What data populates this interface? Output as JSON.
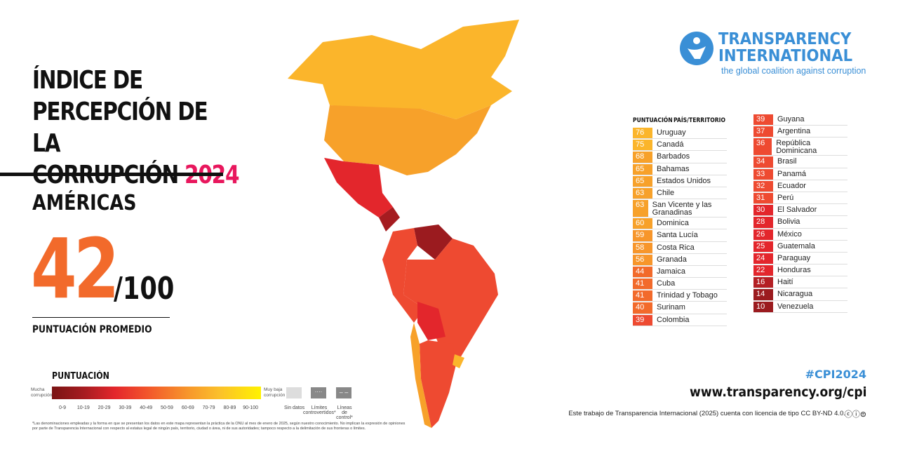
{
  "title": {
    "line1": "ÍNDICE DE",
    "line2": "PERCEPCIÓN DE LA",
    "line3": "CORRUPCIÓN",
    "year": "2024"
  },
  "region": "AMÉRICAS",
  "score": {
    "value": "42",
    "out_of": "/100",
    "label": "PUNTUACIÓN PROMEDIO"
  },
  "legend": {
    "title": "PUNTUACIÓN",
    "left_label": "Mucha corrupción",
    "right_label": "Muy baja corrupción",
    "ranges": [
      "0-9",
      "10-19",
      "20-29",
      "30-39",
      "40-49",
      "50-59",
      "60-69",
      "70-79",
      "80-89",
      "90-100"
    ],
    "no_data": "Sin datos",
    "disputed": "Límites controvertidos*",
    "control": "Líneas de control*"
  },
  "footnote": "*Las denominaciones empleadas y la forma en que se presentan los datos en este mapa representan la práctica de la ONU al mes de enero de 2025, según nuestro conocimiento. No implican la expresión de opiniones por parte de Transparencia Internacional con respecto al estatus legal de ningún país, territorio, ciudad o área, ni de sus autoridades; tampoco respecto a la delimitación de sus fronteras o límites.",
  "logo": {
    "line1": "TRANSPARENCY",
    "line2": "INTERNATIONAL",
    "tagline": "the global coalition against corruption"
  },
  "table": {
    "col_score": "PUNTUACIÓN",
    "col_country": "PAÍS/TERRITORIO",
    "left": [
      [
        "76",
        "Uruguay"
      ],
      [
        "75",
        "Canadá"
      ],
      [
        "68",
        "Barbados"
      ],
      [
        "65",
        "Bahamas"
      ],
      [
        "65",
        "Estados Unidos"
      ],
      [
        "63",
        "Chile"
      ],
      [
        "63",
        "San Vicente y las Granadinas"
      ],
      [
        "60",
        "Dominica"
      ],
      [
        "59",
        "Santa Lucía"
      ],
      [
        "58",
        "Costa Rica"
      ],
      [
        "56",
        "Granada"
      ],
      [
        "44",
        "Jamaica"
      ],
      [
        "41",
        "Cuba"
      ],
      [
        "41",
        "Trinidad y Tobago"
      ],
      [
        "40",
        "Surinam"
      ],
      [
        "39",
        "Colombia"
      ]
    ],
    "right": [
      [
        "39",
        "Guyana"
      ],
      [
        "37",
        "Argentina"
      ],
      [
        "36",
        "República Dominicana"
      ],
      [
        "34",
        "Brasil"
      ],
      [
        "33",
        "Panamá"
      ],
      [
        "32",
        "Ecuador"
      ],
      [
        "31",
        "Perú"
      ],
      [
        "30",
        "El Salvador"
      ],
      [
        "28",
        "Bolivia"
      ],
      [
        "26",
        "México"
      ],
      [
        "25",
        "Guatemala"
      ],
      [
        "24",
        "Paraguay"
      ],
      [
        "22",
        "Honduras"
      ],
      [
        "16",
        "Haití"
      ],
      [
        "14",
        "Nicaragua"
      ],
      [
        "10",
        "Venezuela"
      ]
    ]
  },
  "hashtag": "#CPI2024",
  "url": "www.transparency.org/cpi",
  "license": "Este trabajo de Transparencia Internacional (2025) cuenta con licencia de tipo CC BY-ND 4.0.",
  "colors": {
    "accent": "#f26a2b",
    "year": "#e8175d",
    "brand": "#3a8fd6"
  }
}
